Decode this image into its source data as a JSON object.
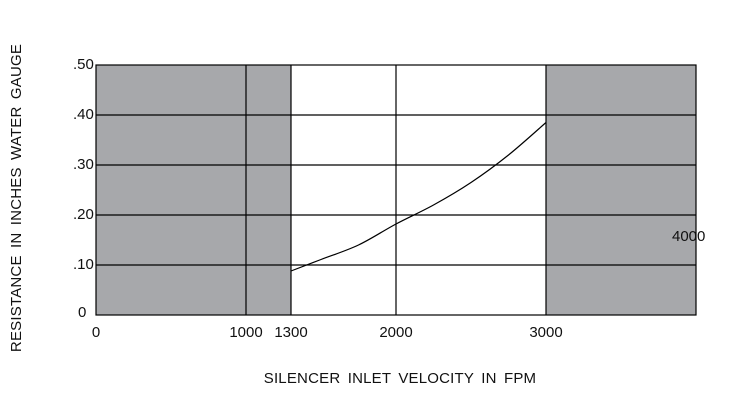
{
  "chart_data": {
    "type": "line",
    "title": "",
    "xlabel": "SILENCER INLET VELOCITY IN FPM",
    "ylabel": "RESISTANCE IN INCHES WATER GAUGE",
    "xlim": [
      0,
      4000
    ],
    "ylim": [
      0,
      0.5
    ],
    "x_ticks": [
      {
        "value": 0,
        "label": "0"
      },
      {
        "value": 1000,
        "label": "1000"
      },
      {
        "value": 1300,
        "label": "1300"
      },
      {
        "value": 2000,
        "label": "2000"
      },
      {
        "value": 3000,
        "label": "3000"
      }
    ],
    "extra_labels": [
      {
        "text": "4000"
      }
    ],
    "y_ticks": [
      {
        "value": 0,
        "label": "0"
      },
      {
        "value": 0.1,
        "label": ".10"
      },
      {
        "value": 0.2,
        "label": ".20"
      },
      {
        "value": 0.3,
        "label": ".30"
      },
      {
        "value": 0.4,
        "label": ".40"
      },
      {
        "value": 0.5,
        "label": ".50"
      }
    ],
    "grid": true,
    "vertical_gridlines": [
      1000,
      1300,
      2000,
      3000
    ],
    "horizontal_gridlines": [
      0.1,
      0.2,
      0.3,
      0.4
    ],
    "shaded_regions": [
      {
        "x": [
          0,
          1300
        ],
        "color": "#a7a8ab"
      },
      {
        "x": [
          3000,
          4000
        ],
        "color": "#a7a8ab"
      }
    ],
    "series": [
      {
        "color": "#000000",
        "x": [
          1300,
          1500,
          1750,
          2000,
          2250,
          2500,
          2750,
          3000
        ],
        "y": [
          0.088,
          0.111,
          0.14,
          0.182,
          0.22,
          0.265,
          0.32,
          0.385
        ]
      }
    ]
  }
}
